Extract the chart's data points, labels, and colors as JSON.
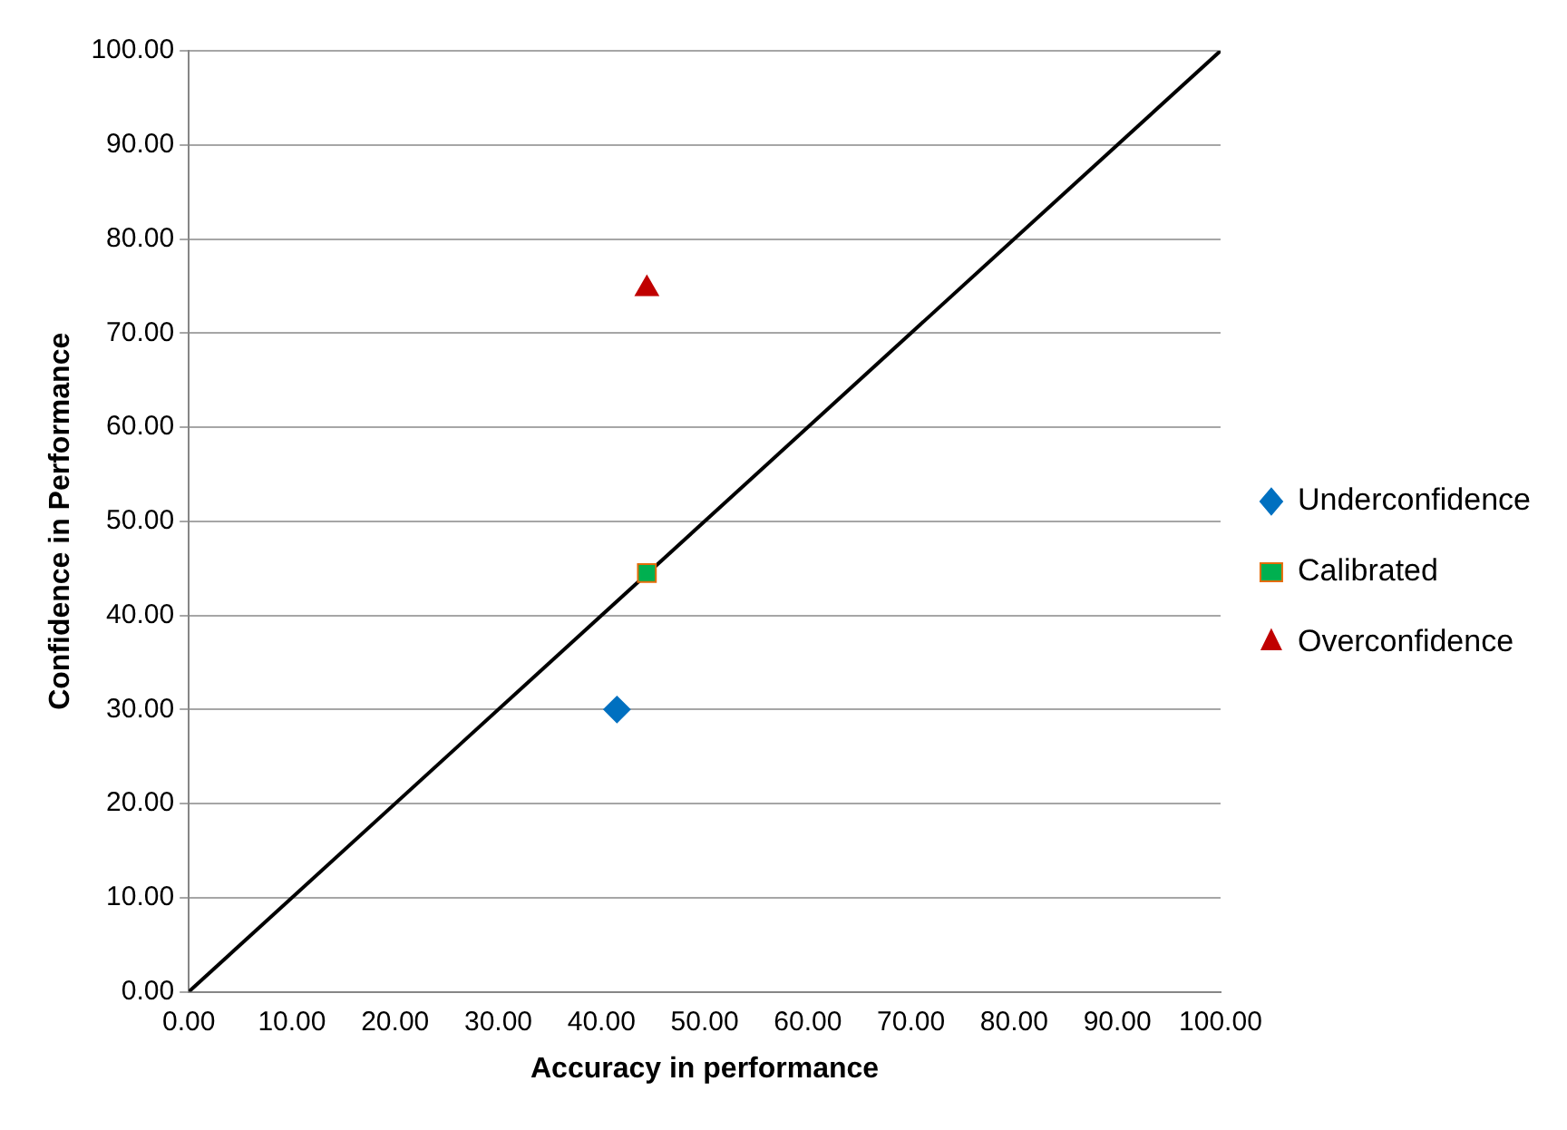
{
  "chart_data": {
    "type": "scatter",
    "xlabel": "Accuracy in performance",
    "ylabel": "Confidence in Performance",
    "xlim": [
      0,
      100
    ],
    "ylim": [
      0,
      100
    ],
    "xticks": [
      {
        "value": 0,
        "label": "0.00"
      },
      {
        "value": 10,
        "label": "10.00"
      },
      {
        "value": 20,
        "label": "20.00"
      },
      {
        "value": 30,
        "label": "30.00"
      },
      {
        "value": 40,
        "label": "40.00"
      },
      {
        "value": 50,
        "label": "50.00"
      },
      {
        "value": 60,
        "label": "60.00"
      },
      {
        "value": 70,
        "label": "70.00"
      },
      {
        "value": 80,
        "label": "80.00"
      },
      {
        "value": 90,
        "label": "90.00"
      },
      {
        "value": 100,
        "label": "100.00"
      }
    ],
    "yticks": [
      {
        "value": 0,
        "label": "0.00"
      },
      {
        "value": 10,
        "label": "10.00"
      },
      {
        "value": 20,
        "label": "20.00"
      },
      {
        "value": 30,
        "label": "30.00"
      },
      {
        "value": 40,
        "label": "40.00"
      },
      {
        "value": 50,
        "label": "50.00"
      },
      {
        "value": 60,
        "label": "60.00"
      },
      {
        "value": 70,
        "label": "70.00"
      },
      {
        "value": 80,
        "label": "80.00"
      },
      {
        "value": 90,
        "label": "90.00"
      },
      {
        "value": 100,
        "label": "100.00"
      }
    ],
    "grid": "y",
    "legend": "right",
    "series": [
      {
        "name": "Underconfidence",
        "color": "#0070c0",
        "marker": "diamond",
        "x": [
          41.5
        ],
        "values": [
          30
        ]
      },
      {
        "name": "Calibrated",
        "color": "#00b050",
        "marker": "square",
        "x": [
          44.4
        ],
        "values": [
          44.5
        ]
      },
      {
        "name": "Overconfidence",
        "color": "#c00000",
        "marker": "triangle",
        "x": [
          44.4
        ],
        "values": [
          74.7
        ]
      },
      {
        "type": "line",
        "color": "#000000",
        "marker": "none",
        "x": [
          0,
          100
        ],
        "values": [
          0,
          100
        ]
      }
    ]
  }
}
